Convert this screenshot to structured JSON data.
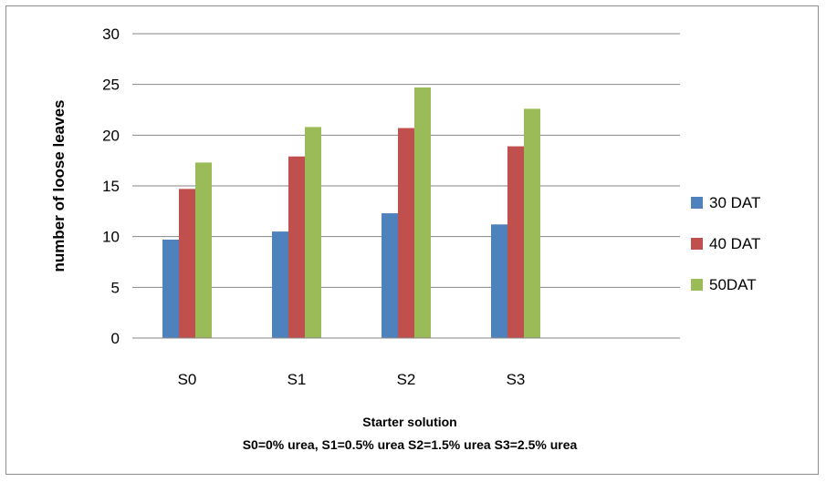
{
  "chart_data": {
    "type": "bar",
    "categories": [
      "S0",
      "S1",
      "S2",
      "S3",
      ""
    ],
    "series": [
      {
        "name": "30 DAT",
        "color": "#4f81bd",
        "values": [
          9.7,
          10.5,
          12.3,
          11.2,
          null
        ]
      },
      {
        "name": "40 DAT",
        "color": "#c0504d",
        "values": [
          14.7,
          17.9,
          20.7,
          18.9,
          null
        ]
      },
      {
        "name": "50DAT",
        "color": "#9bbb59",
        "values": [
          17.3,
          20.8,
          24.7,
          22.6,
          null
        ]
      }
    ],
    "ylim": [
      0,
      30
    ],
    "yticks": [
      0,
      5,
      10,
      15,
      20,
      25,
      30
    ],
    "ylabel": "number of loose leaves",
    "xlabel": "Starter solution",
    "x_note": "S0=0% urea, S1=0.5% urea S2=1.5% urea  S3=2.5% urea",
    "grid": true,
    "legend": "right"
  }
}
